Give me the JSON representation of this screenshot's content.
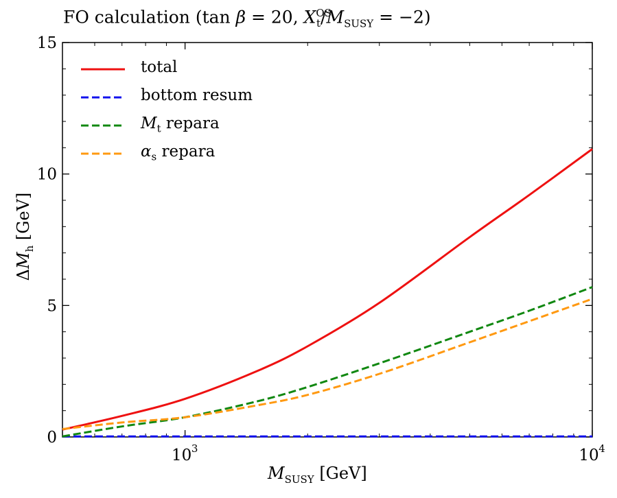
{
  "chart_data": {
    "type": "line",
    "title": "FO calculation (tan β = 20, X_t^OS/M_SUSY = −2)",
    "title_parts": {
      "prefix": "FO calculation (tan ",
      "beta": "β",
      "mid": " = 20, ",
      "xt": "X",
      "xt_sub": "t",
      "xt_sup": "OS",
      "slash": "/",
      "m": "M",
      "m_sub": "SUSY",
      "suffix": " = −2)"
    },
    "xlabel": "M_SUSY [GeV]",
    "xlabel_parts": {
      "m": "M",
      "sub": "SUSY",
      "unit": " [GeV]"
    },
    "ylabel": "ΔM_h [GeV]",
    "ylabel_parts": {
      "delta": "Δ",
      "m": "M",
      "sub": "h",
      "unit": " [GeV]"
    },
    "xscale": "log",
    "xlim": [
      500,
      10000
    ],
    "ylim": [
      0,
      15
    ],
    "yticks": [
      0,
      5,
      10,
      15
    ],
    "ytick_labels": [
      "0",
      "5",
      "10",
      "15"
    ],
    "xticks": [
      1000,
      10000
    ],
    "xtick_labels": [
      {
        "base": "10",
        "exp": "3"
      },
      {
        "base": "10",
        "exp": "4"
      }
    ],
    "legend_position": "top-left",
    "series": [
      {
        "name": "total",
        "label_main": "total",
        "label_sub": "",
        "label_rest": "",
        "color": "#ee1111",
        "dash": "solid",
        "x": [
          500,
          700,
          1000,
          1500,
          2000,
          3000,
          5000,
          7000,
          10000
        ],
        "values": [
          0.28,
          0.8,
          1.45,
          2.5,
          3.45,
          5.1,
          7.6,
          9.2,
          10.95
        ]
      },
      {
        "name": "bottom resum",
        "label_main": "bottom resum",
        "label_sub": "",
        "label_rest": "",
        "color": "#1111ee",
        "dash": "dashed",
        "x": [
          500,
          10000
        ],
        "values": [
          0.02,
          0.02
        ]
      },
      {
        "name": "M_t repara",
        "label_main": "M",
        "label_sub": "t",
        "label_rest": " repara",
        "color": "#118811",
        "dash": "dashed",
        "x": [
          500,
          700,
          1000,
          1500,
          2000,
          3000,
          5000,
          7000,
          10000
        ],
        "values": [
          0.02,
          0.4,
          0.75,
          1.35,
          1.9,
          2.8,
          4.0,
          4.8,
          5.7
        ]
      },
      {
        "name": "α_s repara",
        "label_main": "α",
        "label_sub": "s",
        "label_rest": " repara",
        "color": "#ff9911",
        "dash": "dashed",
        "x": [
          500,
          700,
          1000,
          1500,
          2000,
          3000,
          5000,
          7000,
          10000
        ],
        "values": [
          0.3,
          0.55,
          0.75,
          1.2,
          1.6,
          2.4,
          3.6,
          4.4,
          5.25
        ]
      }
    ]
  }
}
